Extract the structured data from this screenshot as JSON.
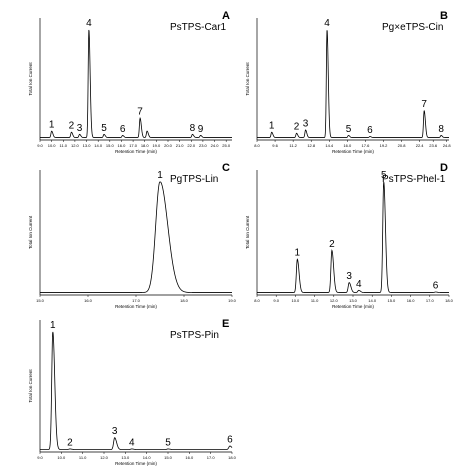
{
  "chart_data": [
    {
      "type": "line",
      "panel": "A",
      "title": "PsTPS-Car1",
      "xlabel": "Retention Time (min)",
      "ylabel": "Total Ion Current",
      "xlim": [
        9.0,
        25.5
      ],
      "xticks": [
        "9.0",
        "10.0",
        "11.0",
        "12.0",
        "13.0",
        "14.0",
        "15.0",
        "16.0",
        "17.0",
        "18.0",
        "19.0",
        "20.0",
        "21.0",
        "22.0",
        "23.0",
        "24.0",
        "25.0"
      ],
      "peaks": [
        {
          "label": "1",
          "x": 10.0,
          "y": 6
        },
        {
          "label": "2",
          "x": 11.7,
          "y": 5
        },
        {
          "label": "3",
          "x": 12.4,
          "y": 3
        },
        {
          "label": "4",
          "x": 13.2,
          "y": 100
        },
        {
          "label": "5",
          "x": 14.5,
          "y": 3
        },
        {
          "label": "6",
          "x": 16.1,
          "y": 2
        },
        {
          "label": "7",
          "x": 17.6,
          "y": 18
        },
        {
          "label": "",
          "x": 18.2,
          "y": 6
        },
        {
          "label": "8",
          "x": 22.1,
          "y": 3
        },
        {
          "label": "9",
          "x": 22.8,
          "y": 2
        }
      ],
      "grid": false
    },
    {
      "type": "line",
      "panel": "B",
      "title": "Pg×eTPS-Cin",
      "xlabel": "Retention Time (min)",
      "ylabel": "Total Ion Current",
      "xlim": [
        8.0,
        25.0
      ],
      "xticks": [
        "8.0",
        "9.6",
        "11.2",
        "12.8",
        "14.4",
        "16.0",
        "17.6",
        "19.2",
        "20.8",
        "22.4",
        "23.6",
        "24.8"
      ],
      "peaks": [
        {
          "label": "1",
          "x": 9.3,
          "y": 5
        },
        {
          "label": "2",
          "x": 11.5,
          "y": 4
        },
        {
          "label": "3",
          "x": 12.3,
          "y": 7
        },
        {
          "label": "4",
          "x": 14.2,
          "y": 100
        },
        {
          "label": "5",
          "x": 16.1,
          "y": 2
        },
        {
          "label": "6",
          "x": 18.0,
          "y": 1
        },
        {
          "label": "7",
          "x": 22.8,
          "y": 25
        },
        {
          "label": "8",
          "x": 24.3,
          "y": 2
        }
      ],
      "grid": false
    },
    {
      "type": "line",
      "panel": "C",
      "title": "PgTPS-Lin",
      "xlabel": "Retention Time (min)",
      "ylabel": "Total Ion Current",
      "xlim": [
        15.0,
        19.0
      ],
      "xticks": [
        "15.0",
        "16.0",
        "17.0",
        "18.0",
        "19.0"
      ],
      "peaks": [
        {
          "label": "1",
          "x": 17.5,
          "y": 100
        }
      ],
      "grid": false
    },
    {
      "type": "line",
      "panel": "D",
      "title": "PsTPS-Phel-1",
      "xlabel": "Retention Time (min)",
      "ylabel": "Total Ion Current",
      "xlim": [
        8.0,
        18.0
      ],
      "xticks": [
        "8.0",
        "9.0",
        "10.0",
        "11.0",
        "12.0",
        "13.0",
        "14.0",
        "15.0",
        "16.0",
        "17.0",
        "18.0"
      ],
      "peaks": [
        {
          "label": "1",
          "x": 10.1,
          "y": 30
        },
        {
          "label": "2",
          "x": 11.9,
          "y": 38
        },
        {
          "label": "3",
          "x": 12.8,
          "y": 9
        },
        {
          "label": "4",
          "x": 13.3,
          "y": 2
        },
        {
          "label": "5",
          "x": 14.6,
          "y": 100
        },
        {
          "label": "6",
          "x": 17.3,
          "y": 0.5
        }
      ],
      "grid": false
    },
    {
      "type": "line",
      "panel": "E",
      "title": "PsTPS-Pin",
      "xlabel": "Retention Time (min)",
      "ylabel": "Total Ion Current",
      "xlim": [
        9.0,
        18.0
      ],
      "xticks": [
        "9.0",
        "10.0",
        "11.0",
        "12.0",
        "13.0",
        "14.0",
        "15.0",
        "16.0",
        "17.0",
        "18.0"
      ],
      "peaks": [
        {
          "label": "1",
          "x": 9.6,
          "y": 100
        },
        {
          "label": "2",
          "x": 10.4,
          "y": 0.5
        },
        {
          "label": "3",
          "x": 12.5,
          "y": 10
        },
        {
          "label": "4",
          "x": 13.3,
          "y": 0.5
        },
        {
          "label": "5",
          "x": 15.0,
          "y": 0.5
        },
        {
          "label": "6",
          "x": 17.9,
          "y": 3
        }
      ],
      "grid": false
    }
  ]
}
